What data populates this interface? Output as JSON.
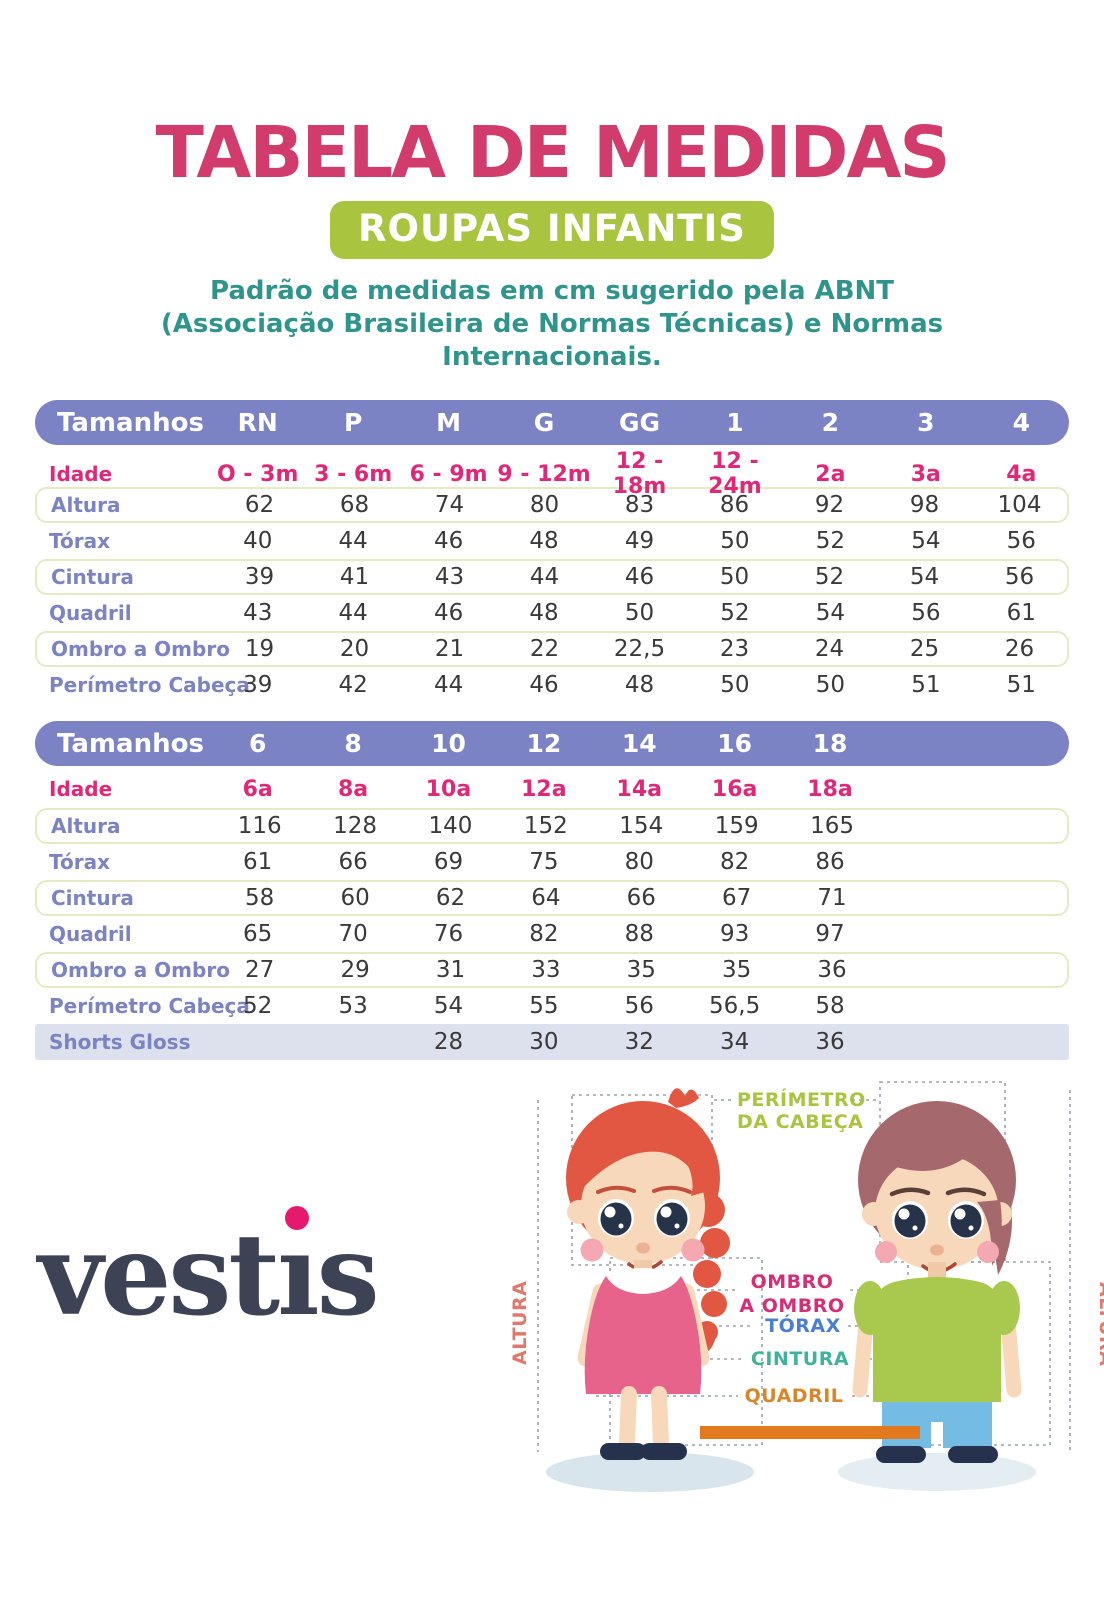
{
  "header": {
    "title": "TABELA DE MEDIDAS",
    "badge": "ROUPAS INFANTIS",
    "description": "Padrão de medidas em cm sugerido pela ABNT (Associação Brasileira de Normas Técnicas) e Normas Internacionais."
  },
  "table1": {
    "header_label": "Tamanhos",
    "columns": [
      "RN",
      "P",
      "M",
      "G",
      "GG",
      "1",
      "2",
      "3",
      "4"
    ],
    "rows": [
      {
        "label": "Idade",
        "style": "idade",
        "values": [
          "O - 3m",
          "3 - 6m",
          "6 - 9m",
          "9 - 12m",
          "12 - 18m",
          "12 - 24m",
          "2a",
          "3a",
          "4a"
        ]
      },
      {
        "label": "Altura",
        "style": "outlined",
        "values": [
          "62",
          "68",
          "74",
          "80",
          "83",
          "86",
          "92",
          "98",
          "104"
        ]
      },
      {
        "label": "Tórax",
        "style": "plain",
        "values": [
          "40",
          "44",
          "46",
          "48",
          "49",
          "50",
          "52",
          "54",
          "56"
        ]
      },
      {
        "label": "Cintura",
        "style": "outlined",
        "values": [
          "39",
          "41",
          "43",
          "44",
          "46",
          "50",
          "52",
          "54",
          "56"
        ]
      },
      {
        "label": "Quadril",
        "style": "plain",
        "values": [
          "43",
          "44",
          "46",
          "48",
          "50",
          "52",
          "54",
          "56",
          "61"
        ]
      },
      {
        "label": "Ombro a Ombro",
        "style": "outlined",
        "values": [
          "19",
          "20",
          "21",
          "22",
          "22,5",
          "23",
          "24",
          "25",
          "26"
        ]
      },
      {
        "label": "Perímetro Cabeça",
        "style": "plain",
        "values": [
          "39",
          "42",
          "44",
          "46",
          "48",
          "50",
          "50",
          "51",
          "51"
        ]
      }
    ]
  },
  "table2": {
    "header_label": "Tamanhos",
    "columns": [
      "6",
      "8",
      "10",
      "12",
      "14",
      "16",
      "18"
    ],
    "rows": [
      {
        "label": "Idade",
        "style": "idade",
        "values": [
          "6a",
          "8a",
          "10a",
          "12a",
          "14a",
          "16a",
          "18a"
        ]
      },
      {
        "label": "Altura",
        "style": "outlined",
        "values": [
          "116",
          "128",
          "140",
          "152",
          "154",
          "159",
          "165"
        ]
      },
      {
        "label": "Tórax",
        "style": "plain",
        "values": [
          "61",
          "66",
          "69",
          "75",
          "80",
          "82",
          "86"
        ]
      },
      {
        "label": "Cintura",
        "style": "outlined",
        "values": [
          "58",
          "60",
          "62",
          "64",
          "66",
          "67",
          "71"
        ]
      },
      {
        "label": "Quadril",
        "style": "plain",
        "values": [
          "65",
          "70",
          "76",
          "82",
          "88",
          "93",
          "97"
        ]
      },
      {
        "label": "Ombro a Ombro",
        "style": "outlined",
        "values": [
          "27",
          "29",
          "31",
          "33",
          "35",
          "35",
          "36"
        ]
      },
      {
        "label": "Perímetro Cabeça",
        "style": "plain",
        "values": [
          "52",
          "53",
          "54",
          "55",
          "56",
          "56,5",
          "58"
        ]
      },
      {
        "label": "Shorts Gloss",
        "style": "shaded",
        "values": [
          "",
          "",
          "28",
          "30",
          "32",
          "34",
          "36"
        ]
      }
    ]
  },
  "brand": {
    "name": "vestis",
    "part1": "vest",
    "part_i": "ı",
    "part2": "s"
  },
  "figure": {
    "label_head_1": "PERÍMETRO",
    "label_head_2": "DA CABEÇA",
    "label_height_left": "ALTURA",
    "label_height_right": "ALTURA",
    "label_shoulder_1": "OMBRO",
    "label_shoulder_2": "A OMBRO",
    "label_chest": "TÓRAX",
    "label_waist": "CINTURA",
    "label_hip": "QUADRIL"
  },
  "colors": {
    "title_pink": "#d23c6d",
    "badge_green": "#a9c43e",
    "description_teal": "#2f948c",
    "table_header_purple": "#7b83c5",
    "idade_pink": "#e02878",
    "row_label_periwinkle": "#7b83c2",
    "outlined_row_border": "#e4ebc2",
    "shaded_row": "#dde0ed",
    "logo_navy": "#3d4254",
    "logo_dot_pink": "#e51a6e",
    "altura_coral": "#e0796b",
    "head_label_lime": "#a9c43e",
    "shoulder_label_pink": "#d62e76",
    "chest_label_blue": "#4a7fd0",
    "waist_label_teal": "#3eb39b",
    "hip_label_orange": "#d8862b",
    "bar_orange": "#e2791f"
  }
}
